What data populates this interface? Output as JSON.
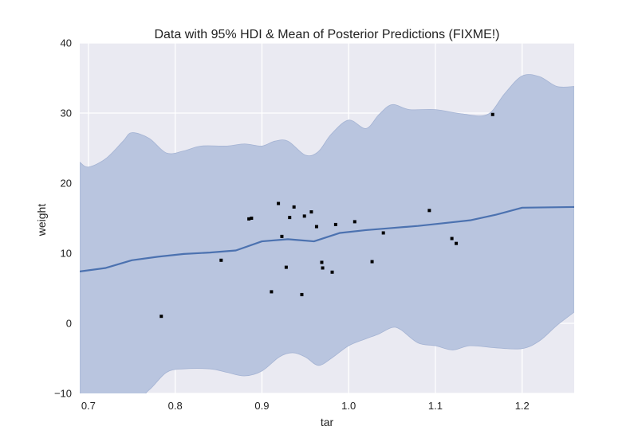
{
  "chart_data": {
    "type": "scatter",
    "title": "Data with 95% HDI & Mean of Posterior Predictions (FIXME!)",
    "xlabel": "tar",
    "ylabel": "weight",
    "xlim": [
      0.69,
      1.26
    ],
    "ylim": [
      -10,
      40
    ],
    "xticks": [
      0.7,
      0.8,
      0.9,
      1.0,
      1.1,
      1.2
    ],
    "xtick_labels": [
      "0.7",
      "0.8",
      "0.9",
      "1.0",
      "1.1",
      "1.2"
    ],
    "yticks": [
      -10,
      0,
      10,
      20,
      30,
      40
    ],
    "ytick_labels": [
      "−10",
      "0",
      "10",
      "20",
      "30",
      "40"
    ],
    "grid": true,
    "colors": {
      "background": "#eaeaf2",
      "grid": "#ffffff",
      "band_fill": "#b9c5df",
      "band_edge": "#a4b3d3",
      "mean_line": "#4c72b0",
      "points": "#000000"
    },
    "hdi_band": {
      "upper": [
        [
          0.69,
          23.0
        ],
        [
          0.7,
          22.3
        ],
        [
          0.72,
          23.5
        ],
        [
          0.74,
          26.0
        ],
        [
          0.75,
          27.2
        ],
        [
          0.77,
          26.4
        ],
        [
          0.79,
          24.3
        ],
        [
          0.81,
          24.6
        ],
        [
          0.83,
          25.3
        ],
        [
          0.86,
          25.3
        ],
        [
          0.88,
          25.6
        ],
        [
          0.9,
          25.3
        ],
        [
          0.915,
          26.0
        ],
        [
          0.93,
          26.0
        ],
        [
          0.95,
          24.0
        ],
        [
          0.965,
          24.5
        ],
        [
          0.98,
          27.0
        ],
        [
          1.0,
          29.0
        ],
        [
          1.02,
          27.8
        ],
        [
          1.035,
          29.8
        ],
        [
          1.05,
          31.2
        ],
        [
          1.07,
          30.5
        ],
        [
          1.1,
          30.5
        ],
        [
          1.13,
          29.9
        ],
        [
          1.16,
          29.8
        ],
        [
          1.18,
          32.8
        ],
        [
          1.2,
          35.3
        ],
        [
          1.22,
          35.2
        ],
        [
          1.24,
          33.8
        ],
        [
          1.26,
          33.8
        ]
      ],
      "lower": [
        [
          0.69,
          -10.0
        ],
        [
          0.75,
          -11.0
        ],
        [
          0.77,
          -9.5
        ],
        [
          0.79,
          -7.0
        ],
        [
          0.81,
          -6.5
        ],
        [
          0.84,
          -6.5
        ],
        [
          0.86,
          -7.0
        ],
        [
          0.88,
          -7.5
        ],
        [
          0.9,
          -6.8
        ],
        [
          0.92,
          -4.8
        ],
        [
          0.935,
          -4.2
        ],
        [
          0.95,
          -4.8
        ],
        [
          0.965,
          -6.0
        ],
        [
          0.98,
          -5.0
        ],
        [
          1.0,
          -3.2
        ],
        [
          1.02,
          -2.2
        ],
        [
          1.035,
          -1.5
        ],
        [
          1.05,
          -0.6
        ],
        [
          1.06,
          -0.9
        ],
        [
          1.08,
          -2.8
        ],
        [
          1.1,
          -3.2
        ],
        [
          1.12,
          -3.8
        ],
        [
          1.14,
          -3.2
        ],
        [
          1.17,
          -3.5
        ],
        [
          1.2,
          -3.6
        ],
        [
          1.22,
          -2.5
        ],
        [
          1.24,
          -0.3
        ],
        [
          1.26,
          1.6
        ]
      ]
    },
    "mean_line": {
      "x": [
        0.69,
        0.72,
        0.75,
        0.78,
        0.81,
        0.84,
        0.87,
        0.9,
        0.93,
        0.96,
        0.99,
        1.02,
        1.05,
        1.08,
        1.11,
        1.14,
        1.17,
        1.2,
        1.26
      ],
      "y": [
        7.4,
        7.9,
        9.0,
        9.5,
        9.9,
        10.1,
        10.4,
        11.7,
        12.0,
        11.7,
        12.9,
        13.3,
        13.6,
        13.9,
        14.3,
        14.7,
        15.5,
        16.5,
        16.6
      ]
    },
    "points": [
      [
        0.784,
        1.0
      ],
      [
        0.853,
        9.0
      ],
      [
        0.885,
        14.9
      ],
      [
        0.888,
        15.0
      ],
      [
        0.911,
        4.5
      ],
      [
        0.919,
        17.1
      ],
      [
        0.923,
        12.4
      ],
      [
        0.928,
        8.0
      ],
      [
        0.932,
        15.1
      ],
      [
        0.937,
        16.6
      ],
      [
        0.946,
        4.1
      ],
      [
        0.949,
        15.3
      ],
      [
        0.957,
        15.9
      ],
      [
        0.963,
        13.8
      ],
      [
        0.969,
        8.7
      ],
      [
        0.97,
        7.9
      ],
      [
        0.981,
        7.3
      ],
      [
        0.985,
        14.1
      ],
      [
        1.007,
        14.5
      ],
      [
        1.027,
        8.8
      ],
      [
        1.04,
        12.9
      ],
      [
        1.093,
        16.1
      ],
      [
        1.119,
        12.1
      ],
      [
        1.124,
        11.4
      ],
      [
        1.166,
        29.8
      ]
    ]
  }
}
